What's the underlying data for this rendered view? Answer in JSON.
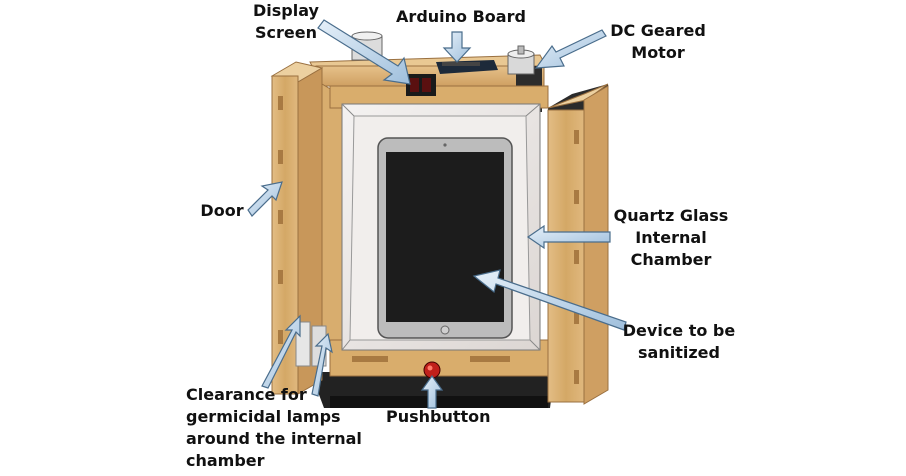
{
  "labels": {
    "display_screen_l1": "Display",
    "display_screen_l2": "Screen",
    "arduino_board": "Arduino Board",
    "dc_motor_l1": "DC Geared",
    "dc_motor_l2": "Motor",
    "door": "Door",
    "quartz_l1": "Quartz Glass",
    "quartz_l2": "Internal",
    "quartz_l3": "Chamber",
    "device_l1": "Device to be",
    "device_l2": "sanitized",
    "clearance_l1": "Clearance for",
    "clearance_l2": "germicidal lamps",
    "clearance_l3": "around the internal",
    "clearance_l4": "chamber",
    "pushbutton": "Pushbutton"
  },
  "colors": {
    "wood": "#d9b27a",
    "wood_dark": "#b88a4e",
    "wood_light": "#e8c995",
    "frame_dark": "#2a2a2a",
    "glass": "#ece8e6",
    "screen": "#1c1c1c",
    "device_body": "#b9b9b9",
    "arrow_fill": "#c9def0",
    "arrow_stroke": "#4a6d8c",
    "button_red": "#c0201b"
  }
}
